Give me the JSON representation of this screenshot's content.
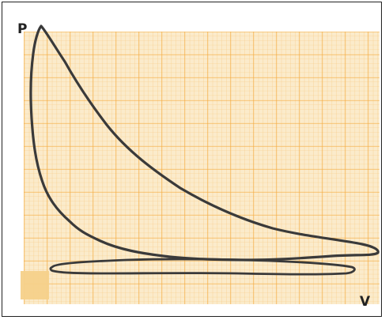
{
  "diagram": {
    "y_axis_label": "P",
    "x_axis_label": "V"
  },
  "colors": {
    "grid_background": "#FBEBCB",
    "grid_minor": "#F8C77C",
    "grid_major": "#F4A93B",
    "curve": "#3A3A3A",
    "frame": "#222222",
    "corner_patch": "#F6D18A"
  }
}
